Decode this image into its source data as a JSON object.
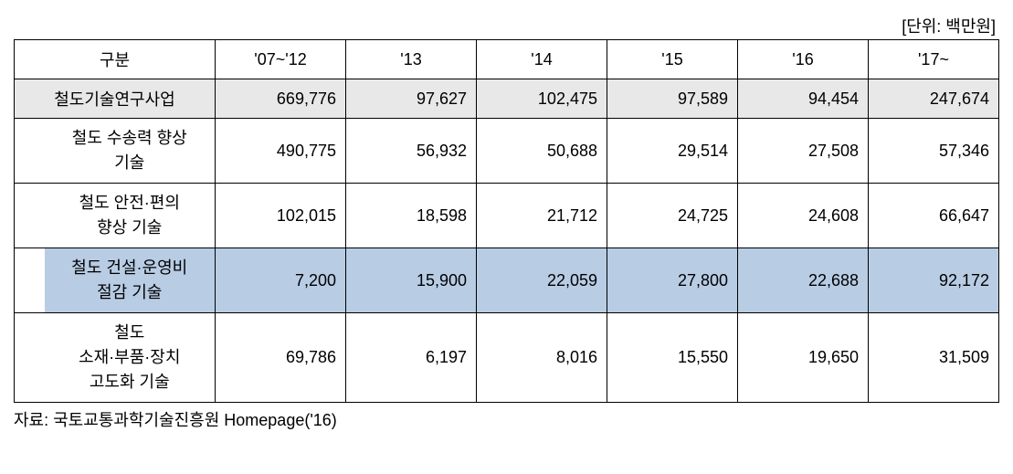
{
  "unit_label": "[단위: 백만원]",
  "header": {
    "category": "구분",
    "years": [
      "'07~'12",
      "'13",
      "'14",
      "'15",
      "'16",
      "'17~"
    ]
  },
  "rows": [
    {
      "label": "철도기술연구사업",
      "values": [
        "669,776",
        "97,627",
        "102,475",
        "97,589",
        "94,454",
        "247,674"
      ],
      "style": "gray",
      "main": true
    },
    {
      "label": "철도 수송력 향상\n기술",
      "values": [
        "490,775",
        "56,932",
        "50,688",
        "29,514",
        "27,508",
        "57,346"
      ],
      "style": "white",
      "main": false
    },
    {
      "label": "철도 안전·편의\n향상 기술",
      "values": [
        "102,015",
        "18,598",
        "21,712",
        "24,725",
        "24,608",
        "66,647"
      ],
      "style": "white",
      "main": false
    },
    {
      "label": "철도 건설·운영비\n절감 기술",
      "values": [
        "7,200",
        "15,900",
        "22,059",
        "27,800",
        "22,688",
        "92,172"
      ],
      "style": "blue",
      "main": false
    },
    {
      "label": "철도\n소재·부품·장치\n고도화 기술",
      "values": [
        "69,786",
        "6,197",
        "8,016",
        "15,550",
        "19,650",
        "31,509"
      ],
      "style": "white",
      "main": false
    }
  ],
  "source": "자료: 국토교통과학기술진흥원 Homepage('16)",
  "colors": {
    "gray_row": "#e8e8e8",
    "blue_row": "#b8cce4",
    "border": "#000000",
    "background": "#ffffff"
  }
}
